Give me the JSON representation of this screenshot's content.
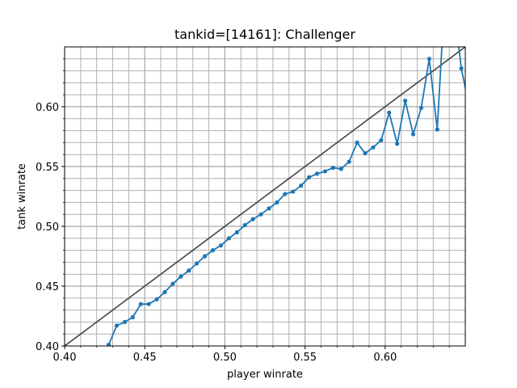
{
  "chart_data": {
    "type": "line",
    "title": "tankid=[14161]: Challenger",
    "xlabel": "player winrate",
    "ylabel": "tank winrate",
    "xlim": [
      0.4,
      0.65
    ],
    "ylim": [
      0.4,
      0.65
    ],
    "grid": true,
    "minor_grid": true,
    "major_ticks_x": [
      "0.40",
      "0.45",
      "0.50",
      "0.55",
      "0.60"
    ],
    "major_ticks_y": [
      "0.40",
      "0.45",
      "0.50",
      "0.55",
      "0.60"
    ],
    "reference_line": {
      "x": [
        0.4,
        0.65
      ],
      "y": [
        0.4,
        0.65
      ],
      "color": "#444444"
    },
    "series": [
      {
        "color": "#1f77b4",
        "x": [
          0.4275,
          0.4325,
          0.4375,
          0.4425,
          0.4475,
          0.4525,
          0.4575,
          0.4625,
          0.4675,
          0.4725,
          0.4775,
          0.4825,
          0.4875,
          0.4925,
          0.4975,
          0.5025,
          0.5075,
          0.5125,
          0.5175,
          0.5225,
          0.5275,
          0.5325,
          0.5375,
          0.5425,
          0.5475,
          0.5525,
          0.5575,
          0.5625,
          0.5675,
          0.5725,
          0.5775,
          0.5825,
          0.5875,
          0.5925,
          0.5975,
          0.6025,
          0.6075,
          0.6125,
          0.6175,
          0.6225,
          0.6275,
          0.6325,
          0.6375,
          0.6425,
          0.6475,
          0.6525
        ],
        "y": [
          0.401,
          0.417,
          0.42,
          0.424,
          0.435,
          0.435,
          0.439,
          0.445,
          0.452,
          0.458,
          0.463,
          0.469,
          0.475,
          0.48,
          0.484,
          0.49,
          0.495,
          0.501,
          0.506,
          0.51,
          0.515,
          0.52,
          0.527,
          0.529,
          0.534,
          0.541,
          0.544,
          0.546,
          0.549,
          0.548,
          0.554,
          0.57,
          0.561,
          0.566,
          0.572,
          0.595,
          0.569,
          0.605,
          0.577,
          0.599,
          0.64,
          0.581,
          0.7,
          0.69,
          0.632,
          0.6
        ]
      }
    ]
  }
}
